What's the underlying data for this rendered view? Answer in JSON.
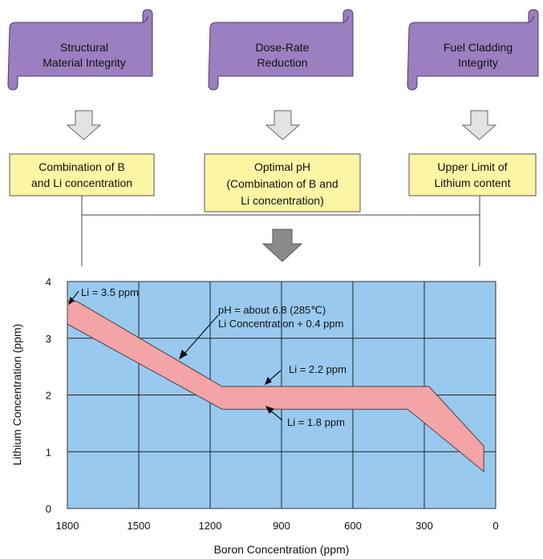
{
  "goals": [
    {
      "line1": "Structural",
      "line2": "Material Integrity"
    },
    {
      "line1": "Dose-Rate",
      "line2": "Reduction"
    },
    {
      "line1": "Fuel Cladding",
      "line2": "Integrity"
    }
  ],
  "requirements": [
    {
      "lines": [
        "Combination of B",
        "and Li concentration"
      ]
    },
    {
      "lines": [
        "Optimal pH",
        "(Combination of B and",
        "Li concentration)"
      ]
    },
    {
      "lines": [
        "Upper Limit of",
        "Lithium content"
      ]
    }
  ],
  "colors": {
    "scroll_fill": "#9b7fc1",
    "box_fill": "#fbf5a4",
    "plot_bg": "#99c9ee",
    "band_fill": "#f4a3a6",
    "arrow_light": "#e3e3e3",
    "arrow_dark": "#8a8a8a"
  },
  "chart_data": {
    "type": "area",
    "xlabel": "Boron Concentration (ppm)",
    "ylabel": "Lithium Concentration (ppm)",
    "xlim": [
      1800,
      0
    ],
    "ylim": [
      0,
      4
    ],
    "x_ticks": [
      "1800",
      "1500",
      "1200",
      "900",
      "600",
      "300",
      "0"
    ],
    "y_ticks": [
      "0",
      "1",
      "2",
      "3",
      "4"
    ],
    "grid": true,
    "upper_boundary": [
      {
        "x": 1800,
        "y": 3.65
      },
      {
        "x": 1760,
        "y": 3.65
      },
      {
        "x": 1150,
        "y": 2.15
      },
      {
        "x": 280,
        "y": 2.15
      },
      {
        "x": 50,
        "y": 1.1
      },
      {
        "x": 50,
        "y": 0.65
      }
    ],
    "lower_boundary": [
      {
        "x": 1800,
        "y": 3.25
      },
      {
        "x": 1150,
        "y": 1.75
      },
      {
        "x": 370,
        "y": 1.75
      },
      {
        "x": 50,
        "y": 0.65
      }
    ],
    "annotations": [
      {
        "text": "Li = 3.5 ppm",
        "x": 1770,
        "y": 3.6
      },
      {
        "text": "pH = about 6.8 (285℃)",
        "x": 1290,
        "y": 2.85
      },
      {
        "text": "Li Concentration + 0.4 ppm",
        "x": 1280,
        "y": 2.7
      },
      {
        "text": "Li = 2.2 ppm",
        "x": 930,
        "y": 2.45
      },
      {
        "text": "Li = 1.8 ppm",
        "x": 930,
        "y": 1.5
      }
    ]
  }
}
